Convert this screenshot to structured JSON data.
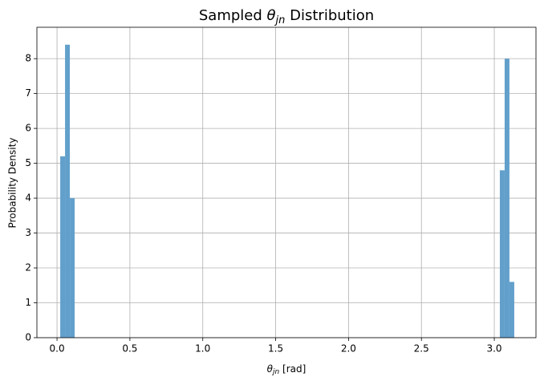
{
  "chart_data": {
    "type": "histogram",
    "title": {
      "prefix": "Sampled",
      "symbol": "θ",
      "subscript": "jn",
      "suffix": "Distribution"
    },
    "xlabel": {
      "symbol": "θ",
      "subscript": "jn",
      "unit": "[rad]"
    },
    "ylabel": "Probability Density",
    "bins": [
      0.022,
      0.055,
      0.088,
      0.121,
      3.038,
      3.071,
      3.104,
      3.137
    ],
    "values": [
      5.2,
      8.4,
      4.0,
      0,
      4.8,
      8.0,
      1.6
    ],
    "color": "#62a0cb",
    "xlim": [
      -0.138,
      3.286
    ],
    "ylim": [
      0,
      8.9
    ],
    "xticks": [
      {
        "value": 0,
        "label": "0.0"
      },
      0.5,
      {
        "value": 1,
        "label": "1.0"
      },
      1.5,
      {
        "value": 2,
        "label": "2.0"
      },
      2.5,
      {
        "value": 3,
        "label": "3.0"
      }
    ],
    "yticks": [
      0,
      1,
      2,
      3,
      4,
      5,
      6,
      7,
      8
    ],
    "grid": true
  }
}
